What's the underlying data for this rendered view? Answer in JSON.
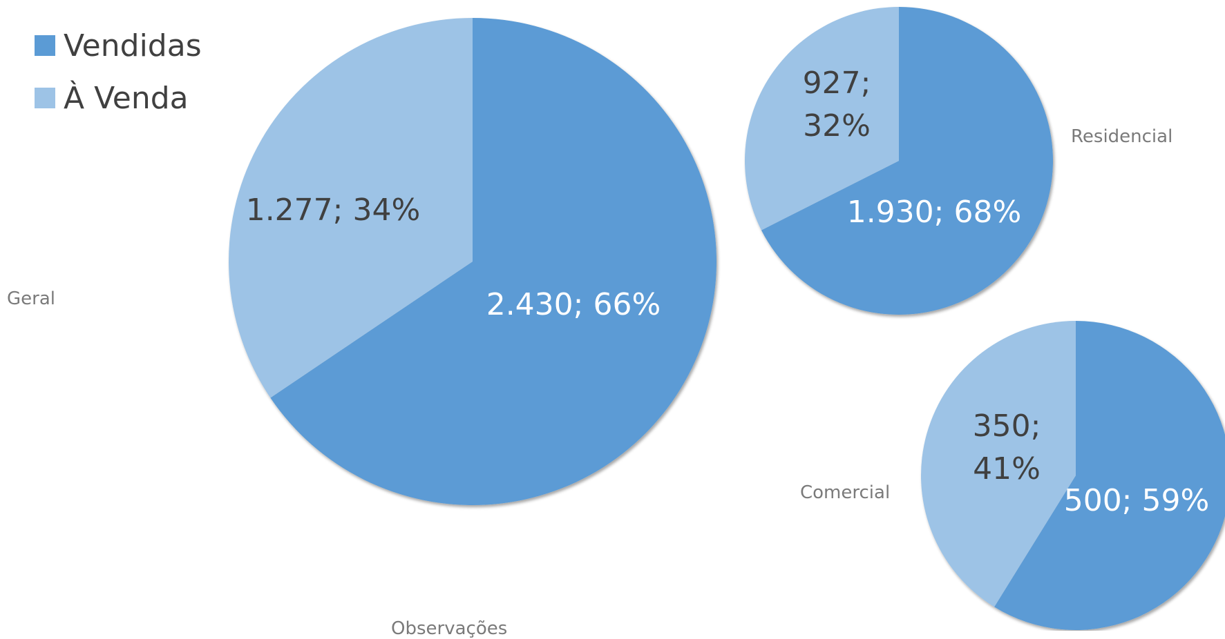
{
  "legend": {
    "items": [
      {
        "label": "Vendidas",
        "color": "#5B9BD5"
      },
      {
        "label": "À Venda",
        "color": "#9DC3E6"
      }
    ]
  },
  "footer_text": "Observações",
  "chart_data": [
    {
      "type": "pie",
      "title": "Geral",
      "slices": [
        {
          "name": "Vendidas",
          "value": 2430,
          "percent": 66,
          "label": "2.430; 66%"
        },
        {
          "name": "À Venda",
          "value": 1277,
          "percent": 34,
          "label": "1.277; 34%"
        }
      ]
    },
    {
      "type": "pie",
      "title": "Residencial",
      "slices": [
        {
          "name": "Vendidas",
          "value": 1930,
          "percent": 68,
          "label": "1.930; 68%"
        },
        {
          "name": "À Venda",
          "value": 927,
          "percent": 32,
          "label": "927; 32%"
        }
      ]
    },
    {
      "type": "pie",
      "title": "Comercial",
      "slices": [
        {
          "name": "Vendidas",
          "value": 500,
          "percent": 59,
          "label": "500; 59%"
        },
        {
          "name": "À Venda",
          "value": 350,
          "percent": 41,
          "label": "350; 41%"
        }
      ]
    }
  ]
}
